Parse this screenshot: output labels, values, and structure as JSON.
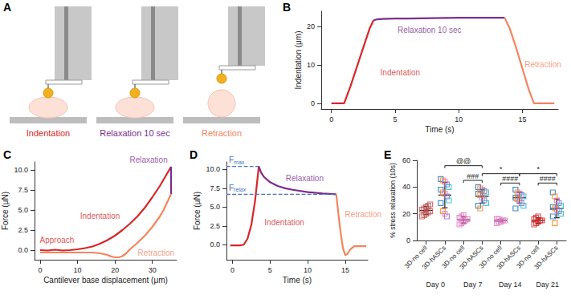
{
  "chart_data": [
    {
      "type": "diagram",
      "panel": "A",
      "steps": [
        {
          "label": "Indentation",
          "color": "#d62728"
        },
        {
          "label": "Relaxation 10 sec",
          "color": "#7b2d8e"
        },
        {
          "label": "Retraction",
          "color": "#f4845f"
        }
      ]
    },
    {
      "type": "line",
      "panel": "B",
      "x_label": "Time (s)",
      "y_label": "Indentation (μm)",
      "xlim": [
        -0.8,
        17.8
      ],
      "xticks": [
        0,
        5,
        10,
        15
      ],
      "ylim": [
        -1.5,
        24
      ],
      "yticks": [
        0,
        10,
        20
      ],
      "series": [
        {
          "color": "#d62728",
          "x": [
            0,
            0.5,
            1.0,
            1.5,
            2.0,
            2.5,
            3.0,
            3.3
          ],
          "values": [
            0,
            0,
            0,
            4.5,
            9.5,
            14.5,
            19.5,
            21.6
          ]
        },
        {
          "color": "#7b2d8e",
          "x": [
            3.3,
            3.6,
            4,
            5,
            6,
            8,
            10,
            12,
            13.6
          ],
          "values": [
            21.6,
            21.9,
            22.0,
            22.1,
            22.1,
            22.2,
            22.3,
            22.3,
            22.3
          ]
        },
        {
          "color": "#f4845f",
          "x": [
            13.6,
            14,
            14.5,
            15,
            15.5,
            15.9,
            16.5,
            17.5
          ],
          "values": [
            22.3,
            19.5,
            14.5,
            9,
            3.5,
            0,
            0,
            0
          ]
        }
      ],
      "annotations": [
        {
          "text": "Indentation",
          "x": 5.4,
          "y": 8,
          "color": "#d62728"
        },
        {
          "text": "Relaxation 10 sec",
          "x": 7.7,
          "y": 19,
          "color": "#7b2d8e"
        },
        {
          "text": "Retraction",
          "x": 16.6,
          "y": 10,
          "color": "#f4845f"
        }
      ]
    },
    {
      "type": "line",
      "panel": "C",
      "x_label": "Cantilever base displacement (μm)",
      "y_label": "Force (μN)",
      "xlim": [
        -1.5,
        36.5
      ],
      "xticks": [
        0,
        10,
        20,
        30
      ],
      "ylim": [
        -1.2,
        11
      ],
      "yticks": [
        {
          "value": 0,
          "label": "0.0"
        },
        {
          "value": 2.5,
          "label": "2.5"
        },
        {
          "value": 5,
          "label": "5.0"
        },
        {
          "value": 7.5,
          "label": "7.5"
        },
        {
          "value": 10,
          "label": "10.0"
        }
      ],
      "series": [
        {
          "color": "#d62728",
          "x": [
            0,
            2,
            4,
            6,
            8,
            10,
            12,
            14,
            16,
            18,
            20,
            22,
            24,
            26,
            28,
            30,
            32,
            34,
            35
          ],
          "values": [
            0,
            -0.05,
            0.05,
            -0.05,
            0,
            0.1,
            0.25,
            0.45,
            0.8,
            1.25,
            1.8,
            2.5,
            3.3,
            4.2,
            5.3,
            6.6,
            8.0,
            9.6,
            10.4
          ]
        },
        {
          "color": "#7b2d8e",
          "x": [
            35,
            35
          ],
          "values": [
            10.4,
            7.0
          ]
        },
        {
          "color": "#f4845f",
          "x": [
            35,
            34,
            33,
            32,
            30,
            28,
            26,
            24,
            23,
            22,
            21,
            20,
            19,
            18,
            16,
            14,
            12,
            10,
            8,
            6,
            4,
            2,
            0
          ],
          "values": [
            7.0,
            6.0,
            5.0,
            4.2,
            2.9,
            1.8,
            0.9,
            0.1,
            -0.4,
            -0.75,
            -0.9,
            -0.9,
            -0.8,
            -0.6,
            -0.4,
            -0.3,
            -0.3,
            -0.3,
            -0.3,
            -0.3,
            -0.3,
            -0.3,
            -0.3
          ]
        }
      ],
      "annotations": [
        {
          "text": "Approach",
          "x": 4.5,
          "y": 1.3,
          "color": "#d62728"
        },
        {
          "text": "Indentation",
          "x": 16,
          "y": 4.3,
          "color": "#d62728"
        },
        {
          "text": "Relaxation",
          "x": 29,
          "y": 11.3,
          "color": "#7b2d8e"
        },
        {
          "text": "Retraction",
          "x": 31,
          "y": -0.3,
          "color": "#f4845f"
        }
      ]
    },
    {
      "type": "line",
      "panel": "D",
      "x_label": "Time (s)",
      "y_label": "Force (μN)",
      "xlim": [
        -0.8,
        18
      ],
      "xticks": [
        0,
        5,
        10,
        15
      ],
      "ylim": [
        -2,
        11
      ],
      "yticks": [
        {
          "value": 0,
          "label": "0.0"
        },
        {
          "value": 2.5,
          "label": "2.5"
        },
        {
          "value": 5,
          "label": "5.0"
        },
        {
          "value": 7.5,
          "label": "7.5"
        },
        {
          "value": 10,
          "label": "10.0"
        }
      ],
      "series": [
        {
          "color": "#d62728",
          "x": [
            -0.3,
            0.5,
            1,
            1.5,
            2,
            2.5,
            3,
            3.5
          ],
          "values": [
            -0.1,
            -0.1,
            -0.1,
            0,
            0.8,
            2.6,
            5.8,
            10.4
          ]
        },
        {
          "color": "#7b2d8e",
          "x": [
            3.5,
            3.8,
            4.2,
            5,
            6,
            7,
            8,
            10,
            12,
            13.8
          ],
          "values": [
            10.4,
            9.6,
            9.0,
            8.3,
            7.8,
            7.5,
            7.3,
            7.0,
            6.8,
            6.7
          ]
        },
        {
          "color": "#f4845f",
          "x": [
            13.8,
            14.1,
            14.4,
            14.7,
            15,
            15.3,
            15.7,
            16.2,
            17,
            17.8
          ],
          "values": [
            6.7,
            4,
            1.5,
            -0.5,
            -1.4,
            -1.2,
            -0.6,
            -0.2,
            -0.2,
            -0.2
          ]
        }
      ],
      "reference_lines": [
        {
          "label": {
            "text": "F",
            "sub": "max"
          },
          "y": 10.4,
          "x_end": 3.5,
          "color": "#4472c4"
        },
        {
          "label": {
            "text": "F",
            "sub": "relax"
          },
          "y": 6.7,
          "x_end": 13.8,
          "color": "#4472c4"
        }
      ],
      "annotations": [
        {
          "text": "Indentation",
          "x": 6.9,
          "y": 3,
          "color": "#d62728"
        },
        {
          "text": "Relaxation",
          "x": 9.6,
          "y": 8.8,
          "color": "#7b2d8e"
        },
        {
          "text": "Retraction",
          "x": 17.4,
          "y": 4,
          "color": "#f4845f"
        }
      ]
    },
    {
      "type": "scatter",
      "panel": "E",
      "y_label": "% stress relaxation (10s)",
      "marker": "square-open",
      "categories": [
        "3D-no cell",
        "3D-hASCs",
        "3D-no cell",
        "3D-hASCs",
        "3D-no cell",
        "3D-hASCs",
        "3D-no cell",
        "3D-hASCs"
      ],
      "groups": [
        "Day 0",
        "Day 7",
        "Day 14",
        "Day 21"
      ],
      "ylim": [
        0,
        60
      ],
      "yticks": [
        0,
        20,
        40,
        60
      ],
      "points": [
        [
          18,
          19,
          20,
          21,
          22,
          23,
          24,
          25,
          26,
          27
        ],
        [
          46,
          45,
          44,
          42,
          40,
          38,
          36,
          35,
          33,
          30,
          28,
          22,
          20,
          18
        ],
        [
          12,
          13,
          14,
          15,
          16,
          17,
          18,
          19
        ],
        [
          40,
          39,
          38,
          37,
          36,
          35,
          34,
          32,
          30,
          28,
          26,
          24
        ],
        [
          13,
          14,
          14,
          15,
          15,
          16,
          16
        ],
        [
          38,
          36,
          35,
          34,
          33,
          32,
          31,
          30,
          28,
          26,
          24
        ],
        [
          12,
          13,
          14,
          15,
          15,
          16,
          17,
          18
        ],
        [
          36,
          33,
          30,
          28,
          26,
          25,
          24,
          23,
          22,
          20,
          18,
          13
        ]
      ],
      "point_colors": [
        [
          "#c0504d",
          "#c0504d",
          "#c0504d",
          "#c0504d",
          "#c0504d",
          "#c0504d",
          "#c0504d",
          "#c0504d",
          "#c0504d",
          "#c0504d"
        ],
        [
          "#1f77b4",
          "#ff7f0e",
          "#e377c2",
          "#9467bd",
          "#17becf",
          "#1f77b4",
          "#ff7f0e",
          "#e377c2",
          "#9467bd",
          "#17becf",
          "#1f77b4",
          "#ff7f0e",
          "#e377c2",
          "#9467bd"
        ],
        [
          "#e377c2",
          "#e377c2",
          "#e377c2",
          "#e377c2",
          "#e377c2",
          "#e377c2",
          "#e377c2",
          "#e377c2"
        ],
        [
          "#1f77b4",
          "#ff7f0e",
          "#e377c2",
          "#9467bd",
          "#17becf",
          "#1f77b4",
          "#ff7f0e",
          "#e377c2",
          "#9467bd",
          "#17becf",
          "#1f77b4",
          "#ff7f0e"
        ],
        [
          "#e377c2",
          "#e377c2",
          "#e377c2",
          "#e377c2",
          "#e377c2",
          "#e377c2",
          "#e377c2"
        ],
        [
          "#1f77b4",
          "#ff7f0e",
          "#e377c2",
          "#9467bd",
          "#17becf",
          "#1f77b4",
          "#ff7f0e",
          "#e377c2",
          "#9467bd",
          "#17becf",
          "#1f77b4"
        ],
        [
          "#d62728",
          "#d62728",
          "#d62728",
          "#d62728",
          "#d62728",
          "#d62728",
          "#d62728",
          "#d62728"
        ],
        [
          "#1f77b4",
          "#ff7f0e",
          "#e377c2",
          "#9467bd",
          "#17becf",
          "#1f77b4",
          "#ff7f0e",
          "#e377c2",
          "#9467bd",
          "#17becf",
          "#1f77b4",
          "#ff7f0e"
        ]
      ],
      "means": [
        22.5,
        34,
        15.5,
        33,
        15,
        32,
        15,
        24
      ],
      "sd": [
        3,
        9.5,
        2.4,
        5,
        1,
        4,
        2,
        7
      ],
      "brackets": [
        {
          "from": 1,
          "to": 3,
          "y": 56,
          "label": "@@"
        },
        {
          "from": 2,
          "to": 3,
          "y": 45,
          "label": "###"
        },
        {
          "from": 3,
          "to": 5,
          "y": 50,
          "label": "*"
        },
        {
          "from": 4,
          "to": 5,
          "y": 43,
          "label": "####"
        },
        {
          "from": 5,
          "to": 7,
          "y": 50,
          "label": "*"
        },
        {
          "from": 6,
          "to": 7,
          "y": 43,
          "label": "####"
        }
      ]
    }
  ]
}
